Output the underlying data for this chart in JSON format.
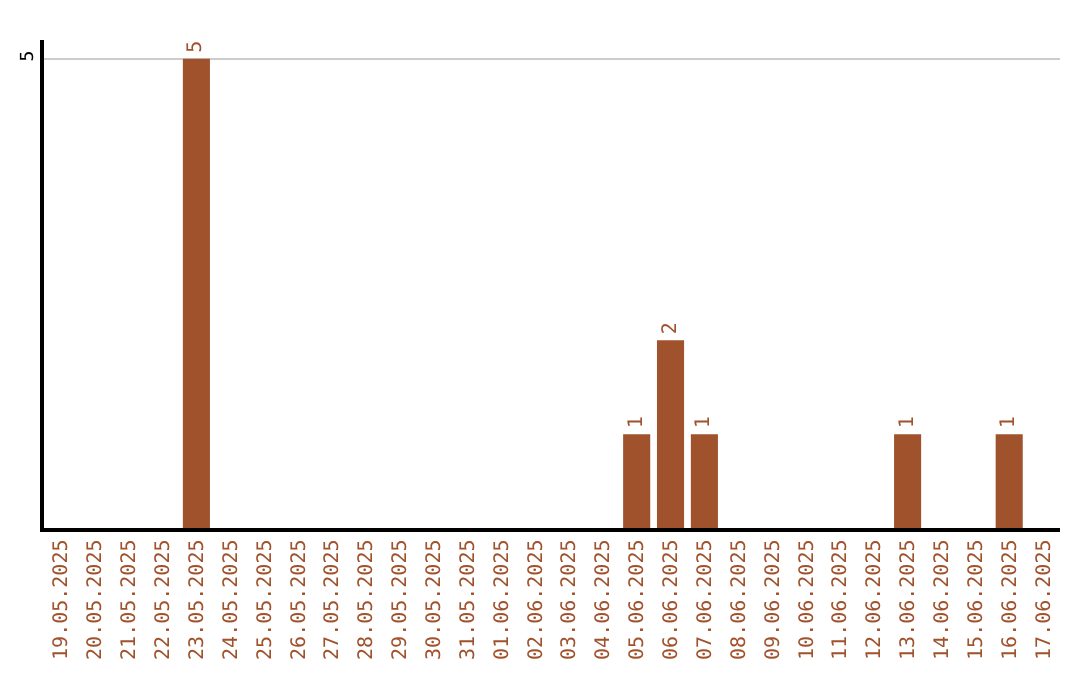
{
  "chart_data": {
    "type": "bar",
    "categories": [
      "19.05.2025",
      "20.05.2025",
      "21.05.2025",
      "22.05.2025",
      "23.05.2025",
      "24.05.2025",
      "25.05.2025",
      "26.05.2025",
      "27.05.2025",
      "28.05.2025",
      "29.05.2025",
      "30.05.2025",
      "31.05.2025",
      "01.06.2025",
      "02.06.2025",
      "03.06.2025",
      "04.06.2025",
      "05.06.2025",
      "06.06.2025",
      "07.06.2025",
      "08.06.2025",
      "09.06.2025",
      "10.06.2025",
      "11.06.2025",
      "12.06.2025",
      "13.06.2025",
      "14.06.2025",
      "15.06.2025",
      "16.06.2025",
      "17.06.2025"
    ],
    "values": [
      0,
      0,
      0,
      0,
      5,
      0,
      0,
      0,
      0,
      0,
      0,
      0,
      0,
      0,
      0,
      0,
      0,
      1,
      2,
      1,
      0,
      0,
      0,
      0,
      0,
      1,
      0,
      0,
      1,
      0
    ],
    "value_labels": [
      null,
      null,
      null,
      null,
      "5",
      null,
      null,
      null,
      null,
      null,
      null,
      null,
      null,
      null,
      null,
      null,
      null,
      "1",
      "2",
      "1",
      null,
      null,
      null,
      null,
      null,
      "1",
      null,
      null,
      "1",
      null
    ],
    "color": "#a0522d",
    "ylim": [
      0,
      5.2
    ],
    "yticks": [
      5
    ],
    "grid": "y",
    "legend": false
  }
}
